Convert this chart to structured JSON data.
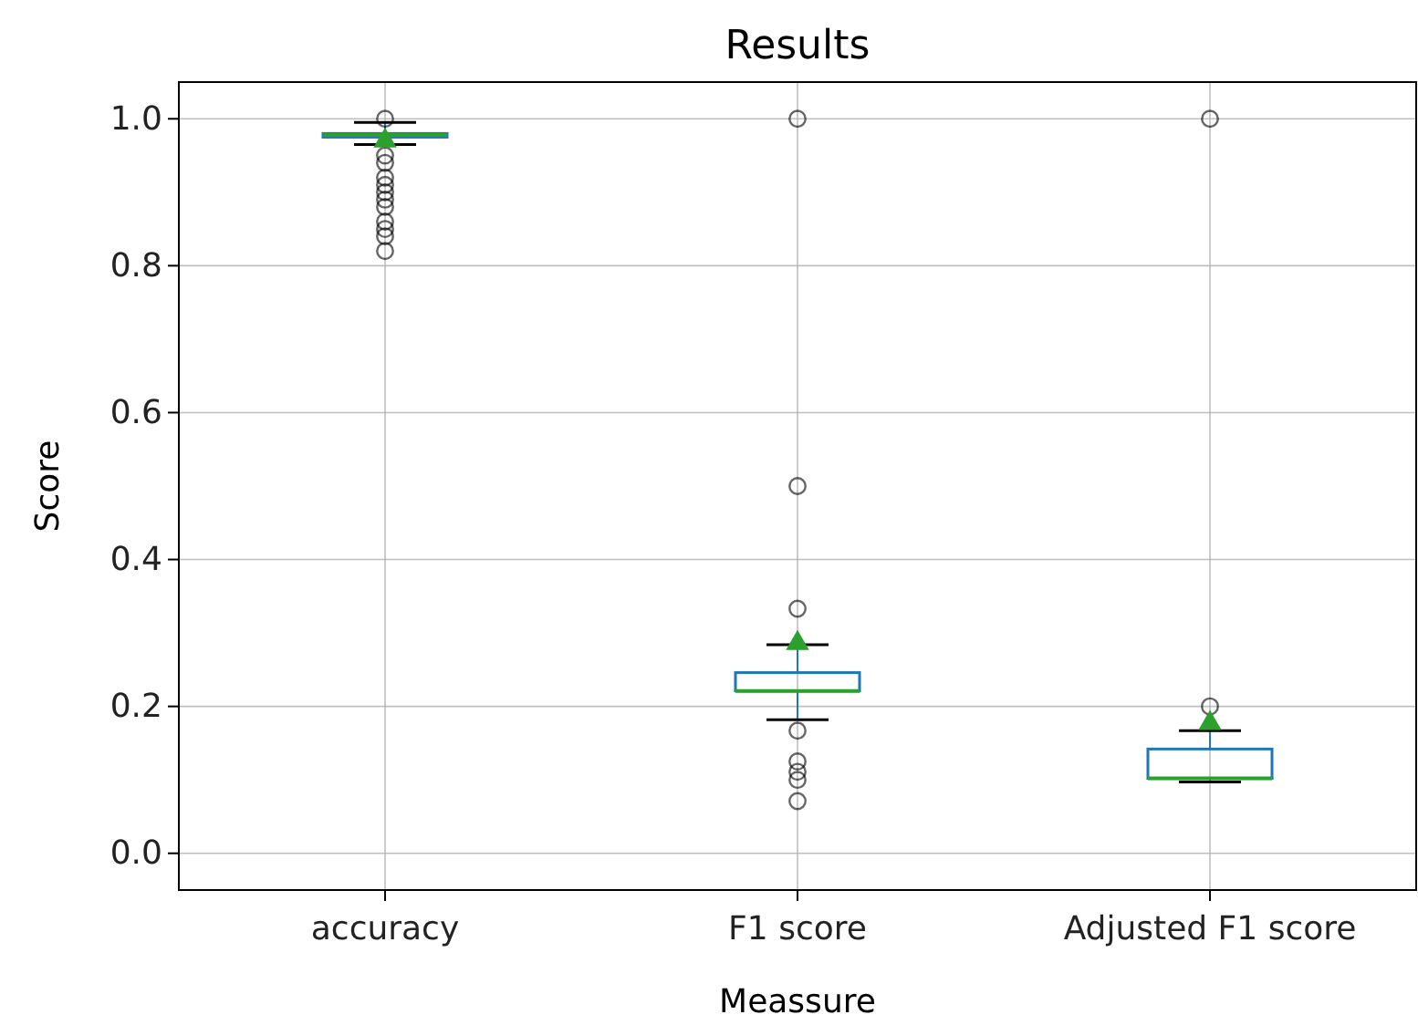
{
  "chart_data": {
    "type": "box",
    "title": "Results",
    "xlabel": "Meassure",
    "ylabel": "Score",
    "categories": [
      "accuracy",
      "F1 score",
      "Adjusted F1 score"
    ],
    "color": "#1f77b4",
    "boxes": [
      {
        "low": 0.965,
        "q1": 0.975,
        "median": 0.978,
        "q3": 0.98,
        "high": 0.995,
        "mean": 0.97,
        "outliers": [
          1.0,
          0.95,
          0.94,
          0.92,
          0.91,
          0.9,
          0.89,
          0.88,
          0.86,
          0.85,
          0.84,
          0.82
        ]
      },
      {
        "low": 0.182,
        "q1": 0.221,
        "median": 0.221,
        "q3": 0.246,
        "high": 0.284,
        "mean": 0.286,
        "outliers": [
          1.0,
          0.5,
          0.333,
          0.167,
          0.125,
          0.111,
          0.1,
          0.071
        ]
      },
      {
        "low": 0.097,
        "q1": 0.102,
        "median": 0.102,
        "q3": 0.142,
        "high": 0.167,
        "mean": 0.177,
        "outliers": [
          1.0,
          0.2
        ]
      }
    ],
    "ylim": [
      -0.05,
      1.05
    ],
    "yticks": [
      {
        "value": 0,
        "label": "0.0"
      },
      {
        "value": 0.2,
        "label": "0.2"
      },
      {
        "value": 0.4,
        "label": "0.4"
      },
      {
        "value": 0.6,
        "label": "0.6"
      },
      {
        "value": 0.8,
        "label": "0.8"
      },
      {
        "value": 1,
        "label": "1.0"
      }
    ],
    "grid": true,
    "marker": "circle"
  }
}
